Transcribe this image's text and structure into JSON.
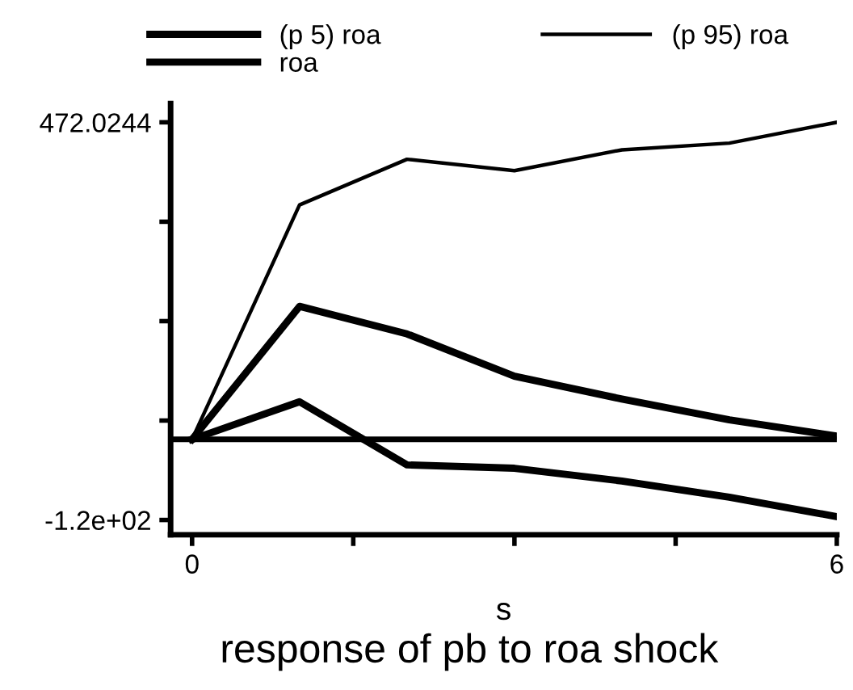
{
  "chart_data": {
    "type": "line",
    "title": "response of pb to roa shock",
    "xlabel": "s",
    "x": [
      0,
      1,
      2,
      3,
      4,
      5,
      6
    ],
    "series": [
      {
        "name": "(p 5) roa",
        "color": "#000000",
        "values": [
          0,
          56,
          -38,
          -43,
          -62,
          -86,
          -115
        ]
      },
      {
        "name": "roa",
        "color": "#000000",
        "values": [
          0,
          198,
          157,
          94,
          60,
          29,
          5
        ]
      },
      {
        "name": "(p 95) roa",
        "color": "#000000",
        "values": [
          0,
          349,
          417,
          400,
          431,
          441,
          472
        ]
      }
    ],
    "ref_lines": [
      {
        "axis": "y",
        "value": 0,
        "color": "#000000"
      }
    ],
    "xlim": [
      -0.2,
      6
    ],
    "xticks": [
      0,
      {
        "value": 1.5,
        "label": null
      },
      {
        "value": 3,
        "label": null
      },
      {
        "value": 4.5,
        "label": null
      },
      6
    ],
    "ylim": [
      -142,
      500
    ],
    "yticks": [
      {
        "value": -120,
        "label": "-1.2e+02"
      },
      {
        "value": 28,
        "label": null
      },
      {
        "value": 176,
        "label": null
      },
      {
        "value": 324,
        "label": null
      },
      472.0244
    ],
    "legend": "top",
    "grid": false,
    "marker": "none",
    "line_style": "solid"
  }
}
